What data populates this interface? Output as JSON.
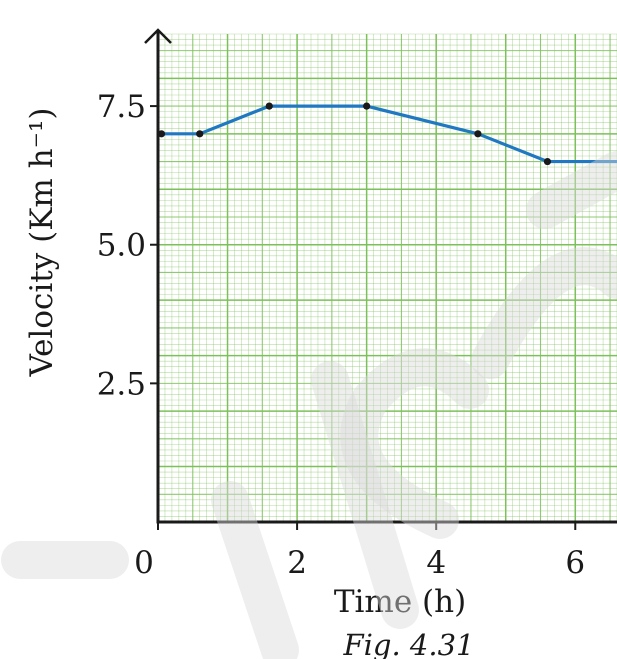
{
  "chart_data": {
    "type": "line",
    "title": "",
    "caption": "Fig. 4.31",
    "xlabel": "Time (h)",
    "ylabel": "Velocity (Km h⁻¹)",
    "xlim": [
      0,
      6.6
    ],
    "ylim": [
      0,
      8.8
    ],
    "x_ticks": [
      0,
      2,
      4,
      6
    ],
    "x_tick_labels": [
      "0",
      "2",
      "4",
      "6"
    ],
    "y_ticks": [
      2.5,
      5.0,
      7.5
    ],
    "y_tick_labels": [
      "2.5",
      "5.0",
      "7.5"
    ],
    "grid": true,
    "grid_color": "#7cc05a",
    "line_color": "#1f78c1",
    "series": [
      {
        "x": [
          0.05,
          0.6,
          1.6,
          3.0,
          4.6,
          5.6,
          6.6
        ],
        "y": [
          7.0,
          7.0,
          7.5,
          7.5,
          7.0,
          6.5,
          6.5
        ],
        "markers": [
          true,
          true,
          true,
          true,
          true,
          true,
          false
        ]
      }
    ]
  }
}
